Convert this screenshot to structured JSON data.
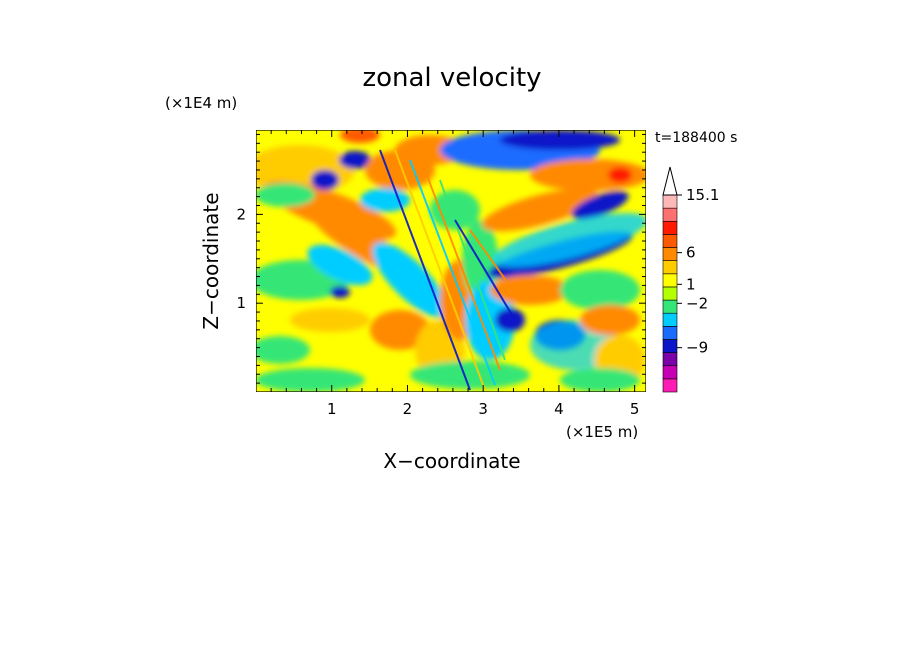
{
  "chart_data": {
    "type": "heatmap",
    "title": "zonal velocity",
    "xlabel": "X−coordinate",
    "ylabel": "Z−coordinate",
    "x_scale_note": "(×1E5 m)",
    "y_scale_note": "(×1E4 m)",
    "time_label": "t=188400 s",
    "xlim": [
      0,
      5.15
    ],
    "ylim": [
      0,
      2.95
    ],
    "x_ticks": [
      1,
      2,
      3,
      4,
      5
    ],
    "x_tick_labels": [
      "1",
      "2",
      "3",
      "4",
      "5"
    ],
    "y_ticks": [
      1,
      2
    ],
    "y_tick_labels": [
      "1",
      "2"
    ],
    "colorbar": {
      "extend_max": true,
      "colors": [
        "#ff1cb4",
        "#c800b4",
        "#7a00a8",
        "#0a16c8",
        "#1a6cff",
        "#00cdff",
        "#35e676",
        "#b4ff00",
        "#ffff00",
        "#ffcc00",
        "#ff8a00",
        "#ff5a00",
        "#ff1a00",
        "#ff7070",
        "#ffb8b8"
      ],
      "labels": [
        {
          "text": "15.1",
          "value": 15.1
        },
        {
          "text": "6",
          "value": 6
        },
        {
          "text": "1",
          "value": 1
        },
        {
          "text": "−2",
          "value": -2
        },
        {
          "text": "−9",
          "value": -9
        }
      ]
    }
  }
}
